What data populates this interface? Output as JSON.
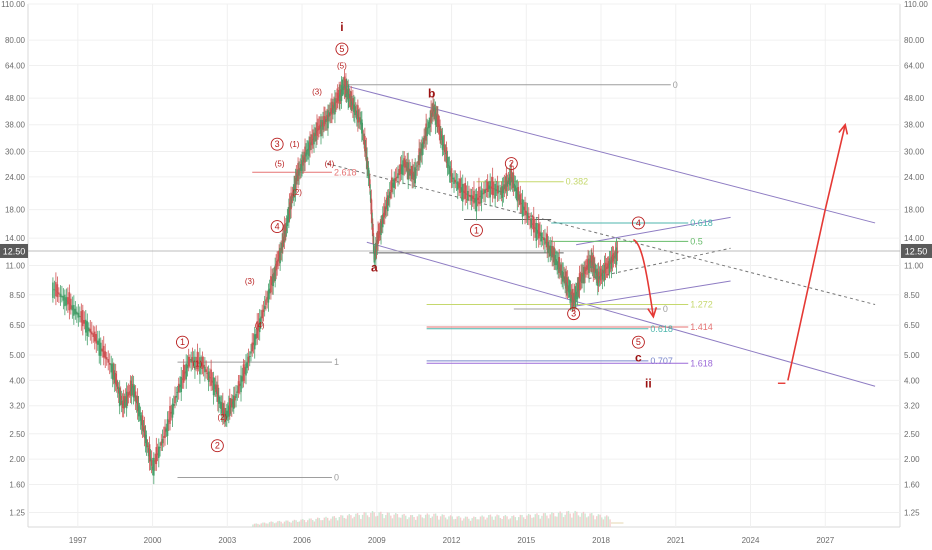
{
  "chart_data": {
    "type": "line",
    "y_scale": "log",
    "ylim": [
      1.1,
      110
    ],
    "xlim": [
      1995,
      2030
    ],
    "grid": true,
    "x_ticks": [
      1997,
      2000,
      2003,
      2006,
      2009,
      2012,
      2015,
      2018,
      2021,
      2024,
      2027
    ],
    "y_ticks": [
      1.25,
      1.6,
      2.0,
      2.5,
      3.2,
      4.0,
      5.0,
      6.5,
      8.5,
      11.0,
      14.0,
      18.0,
      24.0,
      30.0,
      38.0,
      48.0,
      64.0,
      80.0,
      110.0
    ],
    "current_price_label": "12.50",
    "current_price": 12.5,
    "price_series": [
      [
        1996.0,
        9.0
      ],
      [
        1996.6,
        8.0
      ],
      [
        1997.2,
        6.8
      ],
      [
        1997.8,
        5.6
      ],
      [
        1998.4,
        4.4
      ],
      [
        1998.8,
        3.2
      ],
      [
        1999.2,
        3.8
      ],
      [
        1999.6,
        2.7
      ],
      [
        2000.0,
        1.85
      ],
      [
        2000.5,
        2.5
      ],
      [
        2001.0,
        3.6
      ],
      [
        2001.5,
        4.8
      ],
      [
        2002.0,
        4.6
      ],
      [
        2002.5,
        3.8
      ],
      [
        2002.9,
        2.9
      ],
      [
        2003.3,
        3.4
      ],
      [
        2003.8,
        4.6
      ],
      [
        2004.3,
        6.6
      ],
      [
        2004.8,
        9.5
      ],
      [
        2005.2,
        13.0
      ],
      [
        2005.5,
        18.0
      ],
      [
        2005.8,
        24.0
      ],
      [
        2006.2,
        30.0
      ],
      [
        2006.6,
        36.0
      ],
      [
        2007.0,
        40.0
      ],
      [
        2007.4,
        47.0
      ],
      [
        2007.7,
        54.0
      ],
      [
        2008.0,
        46.0
      ],
      [
        2008.4,
        38.0
      ],
      [
        2008.7,
        24.0
      ],
      [
        2008.9,
        12.0
      ],
      [
        2009.2,
        16.0
      ],
      [
        2009.6,
        22.0
      ],
      [
        2010.1,
        27.0
      ],
      [
        2010.5,
        24.0
      ],
      [
        2010.9,
        33.0
      ],
      [
        2011.3,
        44.0
      ],
      [
        2011.6,
        34.0
      ],
      [
        2012.0,
        24.0
      ],
      [
        2012.5,
        21.0
      ],
      [
        2013.0,
        19.5
      ],
      [
        2013.5,
        22.0
      ],
      [
        2014.0,
        21.0
      ],
      [
        2014.4,
        24.0
      ],
      [
        2014.8,
        19.0
      ],
      [
        2015.3,
        15.5
      ],
      [
        2015.8,
        13.5
      ],
      [
        2016.2,
        11.5
      ],
      [
        2016.6,
        9.5
      ],
      [
        2016.9,
        8.0
      ],
      [
        2017.2,
        9.8
      ],
      [
        2017.6,
        11.5
      ],
      [
        2017.9,
        9.8
      ],
      [
        2018.3,
        11.0
      ],
      [
        2018.7,
        12.5
      ]
    ],
    "volume_series": [
      [
        2004.0,
        0.1
      ],
      [
        2004.8,
        0.18
      ],
      [
        2005.6,
        0.22
      ],
      [
        2006.4,
        0.28
      ],
      [
        2007.2,
        0.34
      ],
      [
        2008.0,
        0.42
      ],
      [
        2008.8,
        0.5
      ],
      [
        2009.6,
        0.45
      ],
      [
        2010.4,
        0.38
      ],
      [
        2011.2,
        0.44
      ],
      [
        2012.0,
        0.36
      ],
      [
        2012.8,
        0.32
      ],
      [
        2013.6,
        0.4
      ],
      [
        2014.4,
        0.36
      ],
      [
        2015.2,
        0.42
      ],
      [
        2016.0,
        0.46
      ],
      [
        2016.8,
        0.52
      ],
      [
        2017.6,
        0.44
      ],
      [
        2018.4,
        0.34
      ]
    ],
    "wave_labels": [
      {
        "text": "1",
        "x": 2001.2,
        "y": 5.6,
        "circled": true
      },
      {
        "text": "(1)",
        "x": 2001.8,
        "y": 4.65,
        "circled": false
      },
      {
        "text": "(2)",
        "x": 2002.8,
        "y": 2.9,
        "circled": false
      },
      {
        "text": "2",
        "x": 2002.6,
        "y": 2.25,
        "circled": true
      },
      {
        "text": "(3)",
        "x": 2003.9,
        "y": 9.6,
        "circled": false
      },
      {
        "text": "(4)",
        "x": 2004.3,
        "y": 6.5,
        "circled": false
      },
      {
        "text": "3",
        "x": 2005.0,
        "y": 32.0,
        "circled": true
      },
      {
        "text": "(1)",
        "x": 2005.7,
        "y": 32.0,
        "circled": false
      },
      {
        "text": "(5)",
        "x": 2005.1,
        "y": 27.0,
        "circled": false
      },
      {
        "text": "(2)",
        "x": 2005.8,
        "y": 21.0,
        "circled": false
      },
      {
        "text": "4",
        "x": 2005.0,
        "y": 15.5,
        "circled": true
      },
      {
        "text": "(3)",
        "x": 2006.6,
        "y": 51.0,
        "circled": false
      },
      {
        "text": "(4)",
        "x": 2007.1,
        "y": 27.0,
        "circled": false
      },
      {
        "text": "(5)",
        "x": 2007.6,
        "y": 64.0,
        "circled": false
      },
      {
        "text": "5",
        "x": 2007.6,
        "y": 74.0,
        "circled": true
      },
      {
        "text": "1",
        "x": 2013.0,
        "y": 15.0,
        "circled": true
      },
      {
        "text": "2",
        "x": 2014.4,
        "y": 27.0,
        "circled": true
      },
      {
        "text": "3",
        "x": 2016.9,
        "y": 7.2,
        "circled": true
      },
      {
        "text": "4",
        "x": 2019.5,
        "y": 16.0,
        "circled": true
      },
      {
        "text": "5",
        "x": 2019.5,
        "y": 5.6,
        "circled": true
      }
    ],
    "bold_labels": [
      {
        "text": "i",
        "x": 2007.6,
        "y": 90.0
      },
      {
        "text": "b",
        "x": 2011.2,
        "y": 50.0
      },
      {
        "text": "a",
        "x": 2008.9,
        "y": 10.8
      },
      {
        "text": "c",
        "x": 2019.5,
        "y": 4.9
      },
      {
        "text": "ii",
        "x": 2019.9,
        "y": 3.9
      }
    ],
    "fib_lines": [
      {
        "label": "0",
        "x1": 2007.6,
        "x2": 2020.8,
        "y": 54.0,
        "color": "#9e9e9e"
      },
      {
        "label": "2.618",
        "x1": 2004.0,
        "x2": 2007.2,
        "y": 25.0,
        "color": "#e57373"
      },
      {
        "label": "0.382",
        "x1": 2013.0,
        "x2": 2016.5,
        "y": 23.0,
        "color": "#c5d86d"
      },
      {
        "label": "0.618",
        "x1": 2016.0,
        "x2": 2021.5,
        "y": 16.0,
        "color": "#4db6ac"
      },
      {
        "label": "0.5",
        "x1": 2016.0,
        "x2": 2021.5,
        "y": 13.6,
        "color": "#66bb6a"
      },
      {
        "label": "1.272",
        "x1": 2011.0,
        "x2": 2021.5,
        "y": 7.8,
        "color": "#c5d86d"
      },
      {
        "label": "0",
        "x1": 2014.5,
        "x2": 2020.4,
        "y": 7.5,
        "color": "#9e9e9e"
      },
      {
        "label": "1.414",
        "x1": 2011.0,
        "x2": 2021.5,
        "y": 6.4,
        "color": "#e57373"
      },
      {
        "label": "0.618",
        "x1": 2011.0,
        "x2": 2019.9,
        "y": 6.3,
        "color": "#4db6ac"
      },
      {
        "label": "0.707",
        "x1": 2011.0,
        "x2": 2019.9,
        "y": 4.75,
        "color": "#7986cb"
      },
      {
        "label": "1.618",
        "x1": 2011.0,
        "x2": 2021.5,
        "y": 4.65,
        "color": "#9c6ad8"
      },
      {
        "label": "1",
        "x1": 2001.0,
        "x2": 2007.2,
        "y": 4.7,
        "color": "#9e9e9e"
      },
      {
        "label": "0",
        "x1": 2001.0,
        "x2": 2007.2,
        "y": 1.7,
        "color": "#9e9e9e"
      },
      {
        "label": "",
        "x1": 2008.7,
        "x2": 2016.5,
        "y": 12.3,
        "color": "#616161"
      },
      {
        "label": "",
        "x1": 2012.5,
        "x2": 2016.0,
        "y": 16.5,
        "color": "#616161"
      }
    ],
    "channel_lines": [
      {
        "x1": 2007.6,
        "y1": 54.0,
        "x2": 2029.0,
        "y2": 16.0,
        "color": "#8e7cc3",
        "dashed": false
      },
      {
        "x1": 2008.6,
        "y1": 13.5,
        "x2": 2029.0,
        "y2": 3.8,
        "color": "#8e7cc3",
        "dashed": false
      },
      {
        "x1": 2007.0,
        "y1": 27.0,
        "x2": 2029.0,
        "y2": 7.8,
        "color": "#757575",
        "dashed": true
      },
      {
        "x1": 2017.0,
        "y1": 13.2,
        "x2": 2023.2,
        "y2": 16.8,
        "color": "#8e7cc3",
        "dashed": false
      },
      {
        "x1": 2017.0,
        "y1": 7.7,
        "x2": 2023.2,
        "y2": 9.6,
        "color": "#8e7cc3",
        "dashed": false
      },
      {
        "x1": 2017.5,
        "y1": 9.8,
        "x2": 2023.2,
        "y2": 12.8,
        "color": "#757575",
        "dashed": true
      }
    ],
    "forecast_arrows": [
      {
        "points": [
          [
            2019.3,
            13.8
          ],
          [
            2019.6,
            13.5
          ],
          [
            2019.8,
            11.0
          ],
          [
            2020.1,
            7.0
          ]
        ],
        "color": "#e53935"
      },
      {
        "points": [
          [
            2025.5,
            4.0
          ],
          [
            2027.0,
            18.0
          ],
          [
            2027.8,
            38.0
          ]
        ],
        "color": "#e53935"
      }
    ]
  }
}
